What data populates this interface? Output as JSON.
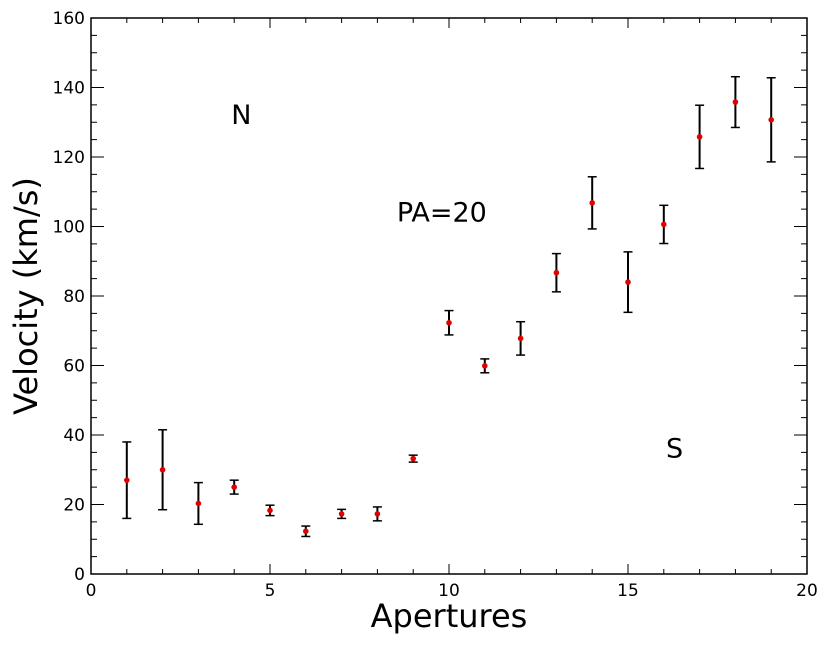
{
  "chart_data": {
    "type": "scatter",
    "title": "",
    "xlabel": "Apertures",
    "ylabel": "Velocity (km/s)",
    "xlim": [
      0,
      20
    ],
    "ylim": [
      0,
      160
    ],
    "x_ticks": [
      0,
      5,
      10,
      15,
      20
    ],
    "y_ticks": [
      0,
      20,
      40,
      60,
      80,
      100,
      120,
      140,
      160
    ],
    "grid": false,
    "legend": "none",
    "marker_color": "#e00000",
    "errorbar_color": "#000000",
    "points": [
      {
        "x": 1,
        "y": 27.0,
        "err": 11.0
      },
      {
        "x": 2,
        "y": 30.0,
        "err": 11.5
      },
      {
        "x": 3,
        "y": 20.3,
        "err": 6.0
      },
      {
        "x": 4,
        "y": 25.0,
        "err": 2.0
      },
      {
        "x": 5,
        "y": 18.3,
        "err": 1.5
      },
      {
        "x": 6,
        "y": 12.3,
        "err": 1.5
      },
      {
        "x": 7,
        "y": 17.3,
        "err": 1.3
      },
      {
        "x": 8,
        "y": 17.3,
        "err": 2.0
      },
      {
        "x": 9,
        "y": 33.2,
        "err": 1.0
      },
      {
        "x": 10,
        "y": 72.3,
        "err": 3.5
      },
      {
        "x": 11,
        "y": 59.9,
        "err": 2.0
      },
      {
        "x": 12,
        "y": 67.8,
        "err": 4.8
      },
      {
        "x": 13,
        "y": 86.7,
        "err": 5.5
      },
      {
        "x": 14,
        "y": 106.8,
        "err": 7.5
      },
      {
        "x": 15,
        "y": 84.0,
        "err": 8.7
      },
      {
        "x": 16,
        "y": 100.6,
        "err": 5.5
      },
      {
        "x": 17,
        "y": 125.8,
        "err": 9.1
      },
      {
        "x": 18,
        "y": 135.8,
        "err": 7.3
      },
      {
        "x": 19,
        "y": 130.7,
        "err": 12.1
      }
    ],
    "annotations": [
      {
        "text": "N",
        "x": 4.2,
        "y": 129.5
      },
      {
        "text": "PA=20",
        "x": 9.8,
        "y": 101.5
      },
      {
        "text": "S",
        "x": 16.3,
        "y": 33.5
      }
    ]
  }
}
